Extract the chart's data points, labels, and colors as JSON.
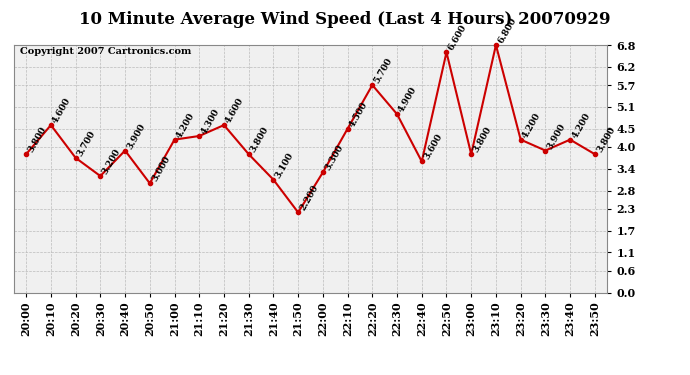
{
  "title": "10 Minute Average Wind Speed (Last 4 Hours) 20070929",
  "copyright": "Copyright 2007 Cartronics.com",
  "x_labels": [
    "20:00",
    "20:10",
    "20:20",
    "20:30",
    "20:40",
    "20:50",
    "21:00",
    "21:10",
    "21:20",
    "21:30",
    "21:40",
    "21:50",
    "22:00",
    "22:10",
    "22:20",
    "22:30",
    "22:40",
    "22:50",
    "23:00",
    "23:10",
    "23:20",
    "23:30",
    "23:40",
    "23:50"
  ],
  "y_values": [
    3.8,
    4.6,
    3.7,
    3.2,
    3.9,
    3.0,
    4.2,
    4.3,
    4.6,
    3.8,
    3.1,
    2.2,
    3.3,
    4.5,
    5.7,
    4.9,
    3.6,
    6.6,
    3.8,
    6.8,
    4.2,
    3.9,
    4.2,
    3.8
  ],
  "y_ticks": [
    0.0,
    0.6,
    1.1,
    1.7,
    2.3,
    2.8,
    3.4,
    4.0,
    4.5,
    5.1,
    5.7,
    6.2,
    6.8
  ],
  "ylim": [
    0.0,
    6.8
  ],
  "line_color": "#cc0000",
  "marker_color": "#cc0000",
  "grid_color": "#bbbbbb",
  "bg_color": "#ffffff",
  "plot_bg_color": "#f0f0f0",
  "title_fontsize": 12,
  "copyright_fontsize": 7,
  "label_fontsize": 6.5,
  "tick_fontsize": 8
}
